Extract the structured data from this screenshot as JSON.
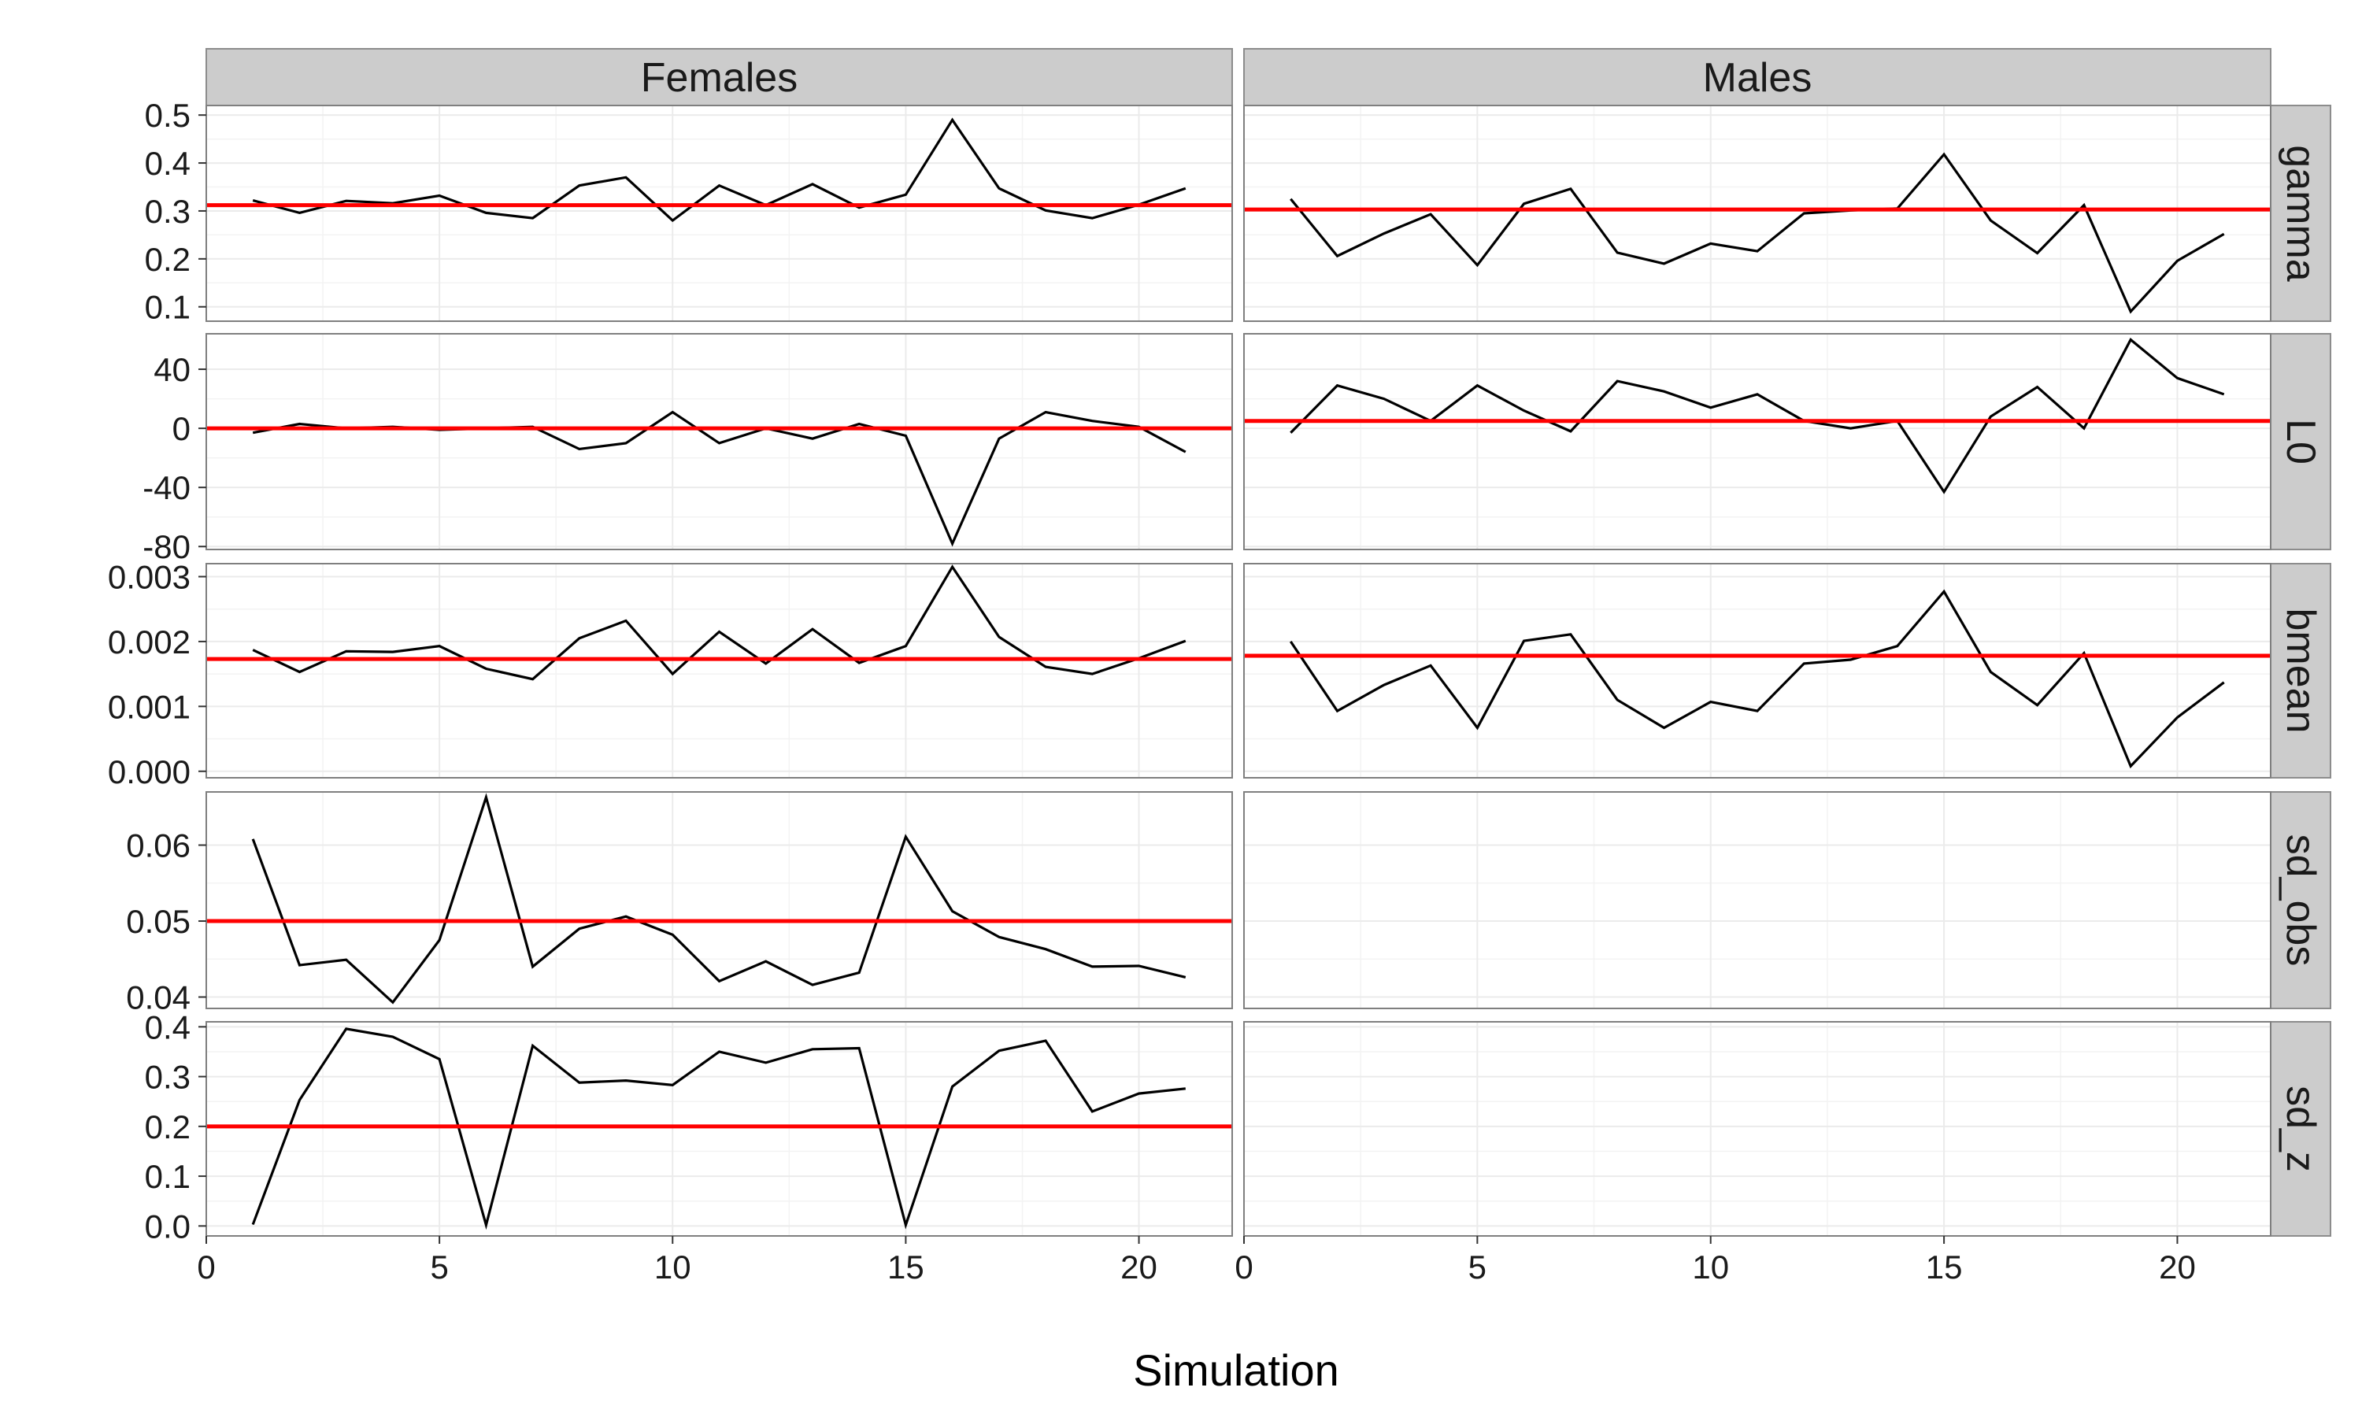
{
  "chart_data": {
    "type": "line",
    "xlabel": "Simulation",
    "xlim": [
      0,
      22
    ],
    "x_ticks": [
      "0",
      "5",
      "10",
      "15",
      "20"
    ],
    "x_tick_values": [
      0,
      5,
      10,
      15,
      20
    ],
    "grid": true,
    "facet_columns": [
      "Females",
      "Males"
    ],
    "line_color": "#000000",
    "reference_color": "#ff0000",
    "panel_background": "#ffffff",
    "grid_color": "#ebebeb",
    "strip_background": "#cccccc",
    "x": [
      1,
      2,
      3,
      4,
      5,
      6,
      7,
      8,
      9,
      10,
      11,
      12,
      13,
      14,
      15,
      16,
      17,
      18,
      19,
      20,
      21
    ],
    "facet_rows": [
      {
        "label": "gamma",
        "ylim": [
          0.07,
          0.52
        ],
        "y_ticks": [
          "0.1",
          "0.2",
          "0.3",
          "0.4",
          "0.5"
        ],
        "y_tick_values": [
          0.1,
          0.2,
          0.3,
          0.4,
          0.5
        ],
        "panels": [
          {
            "values": [
              0.322,
              0.296,
              0.321,
              0.316,
              0.332,
              0.296,
              0.285,
              0.353,
              0.37,
              0.28,
              0.353,
              0.312,
              0.356,
              0.307,
              0.334,
              0.49,
              0.347,
              0.301,
              0.285,
              0.313,
              0.347
            ],
            "reference": 0.312
          },
          {
            "values": [
              0.325,
              0.206,
              0.253,
              0.293,
              0.187,
              0.315,
              0.346,
              0.213,
              0.19,
              0.232,
              0.216,
              0.295,
              0.301,
              0.305,
              0.418,
              0.28,
              0.212,
              0.312,
              0.09,
              0.196,
              0.252
            ],
            "reference": 0.303
          }
        ]
      },
      {
        "label": "L0",
        "ylim": [
          -82,
          64
        ],
        "y_ticks": [
          "-80",
          "-40",
          "0",
          "40"
        ],
        "y_tick_values": [
          -80,
          -40,
          0,
          40
        ],
        "panels": [
          {
            "values": [
              -3,
              3,
              0,
              1,
              -1,
              0,
              1,
              -14,
              -10,
              11,
              -10,
              0,
              -7,
              3,
              -5,
              -78,
              -7,
              11,
              5,
              1,
              -16
            ],
            "reference": 0
          },
          {
            "values": [
              -3,
              29,
              20,
              5,
              29,
              12,
              -2,
              32,
              25,
              14,
              23,
              5,
              0,
              5,
              -43,
              8,
              28,
              0,
              60,
              34,
              23
            ],
            "reference": 5
          }
        ]
      },
      {
        "label": "bmean",
        "ylim": [
          -0.0001,
          0.0032
        ],
        "y_ticks": [
          "0.000",
          "0.001",
          "0.002",
          "0.003"
        ],
        "y_tick_values": [
          0.0,
          0.001,
          0.002,
          0.003
        ],
        "panels": [
          {
            "values": [
              0.00187,
              0.00153,
              0.00185,
              0.00184,
              0.00193,
              0.00158,
              0.00142,
              0.00205,
              0.00232,
              0.0015,
              0.00215,
              0.00166,
              0.00219,
              0.00167,
              0.00193,
              0.00315,
              0.00207,
              0.00161,
              0.0015,
              0.00174,
              0.00201
            ],
            "reference": 0.00173
          },
          {
            "values": [
              0.002,
              0.00093,
              0.00133,
              0.00163,
              0.00067,
              0.00201,
              0.00211,
              0.0011,
              0.00067,
              0.00107,
              0.00093,
              0.00166,
              0.00172,
              0.00193,
              0.00277,
              0.00153,
              0.00102,
              0.00182,
              8e-05,
              0.00083,
              0.00137
            ],
            "reference": 0.00178
          }
        ]
      },
      {
        "label": "sd_obs",
        "ylim": [
          0.0385,
          0.067
        ],
        "y_ticks": [
          "0.04",
          "0.05",
          "0.06"
        ],
        "y_tick_values": [
          0.04,
          0.05,
          0.06
        ],
        "panels": [
          {
            "values": [
              0.0608,
              0.0442,
              0.0449,
              0.0393,
              0.0475,
              0.0663,
              0.044,
              0.049,
              0.0506,
              0.0482,
              0.0421,
              0.0447,
              0.0416,
              0.0432,
              0.0611,
              0.0513,
              0.0479,
              0.0463,
              0.044,
              0.0441,
              0.0426
            ],
            "reference": 0.05
          },
          {
            "values": [],
            "reference": null
          }
        ]
      },
      {
        "label": "sd_z",
        "ylim": [
          -0.02,
          0.41
        ],
        "y_ticks": [
          "0.0",
          "0.1",
          "0.2",
          "0.3",
          "0.4"
        ],
        "y_tick_values": [
          0.0,
          0.1,
          0.2,
          0.3,
          0.4
        ],
        "panels": [
          {
            "values": [
              0.003,
              0.253,
              0.396,
              0.38,
              0.335,
              0.002,
              0.362,
              0.288,
              0.292,
              0.283,
              0.35,
              0.328,
              0.355,
              0.357,
              0.002,
              0.28,
              0.352,
              0.372,
              0.23,
              0.266,
              0.276
            ],
            "reference": 0.2
          },
          {
            "values": [],
            "reference": null
          }
        ]
      }
    ]
  }
}
